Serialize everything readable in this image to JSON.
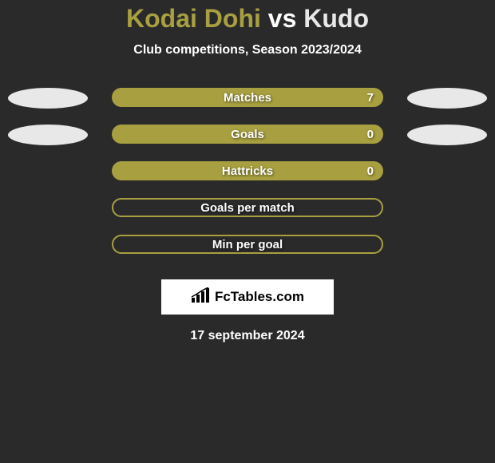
{
  "title": {
    "player1": "Kodai Dohi",
    "vs": "vs",
    "player2": "Kudo",
    "player1_color": "#a8a040",
    "vs_color": "#ffffff",
    "player2_color": "#e8e8e8"
  },
  "subtitle": "Club competitions, Season 2023/2024",
  "background_color": "#2a2a2a",
  "rows": [
    {
      "label": "Matches",
      "value": "7",
      "bar_filled": true,
      "bar_fill_color": "#a8a040",
      "bar_border_color": "#a8a040",
      "left_ellipse": true,
      "left_ellipse_color": "#e8e8e8",
      "right_ellipse": true,
      "right_ellipse_color": "#e8e8e8"
    },
    {
      "label": "Goals",
      "value": "0",
      "bar_filled": true,
      "bar_fill_color": "#a8a040",
      "bar_border_color": "#a8a040",
      "left_ellipse": true,
      "left_ellipse_color": "#e8e8e8",
      "right_ellipse": true,
      "right_ellipse_color": "#e8e8e8"
    },
    {
      "label": "Hattricks",
      "value": "0",
      "bar_filled": true,
      "bar_fill_color": "#a8a040",
      "bar_border_color": "#a8a040",
      "left_ellipse": false,
      "right_ellipse": false
    },
    {
      "label": "Goals per match",
      "value": "",
      "bar_filled": false,
      "bar_fill_color": "transparent",
      "bar_border_color": "#a8a040",
      "left_ellipse": false,
      "right_ellipse": false
    },
    {
      "label": "Min per goal",
      "value": "",
      "bar_filled": false,
      "bar_fill_color": "transparent",
      "bar_border_color": "#a8a040",
      "left_ellipse": false,
      "right_ellipse": false
    }
  ],
  "brand": "FcTables.com",
  "date": "17 september 2024"
}
